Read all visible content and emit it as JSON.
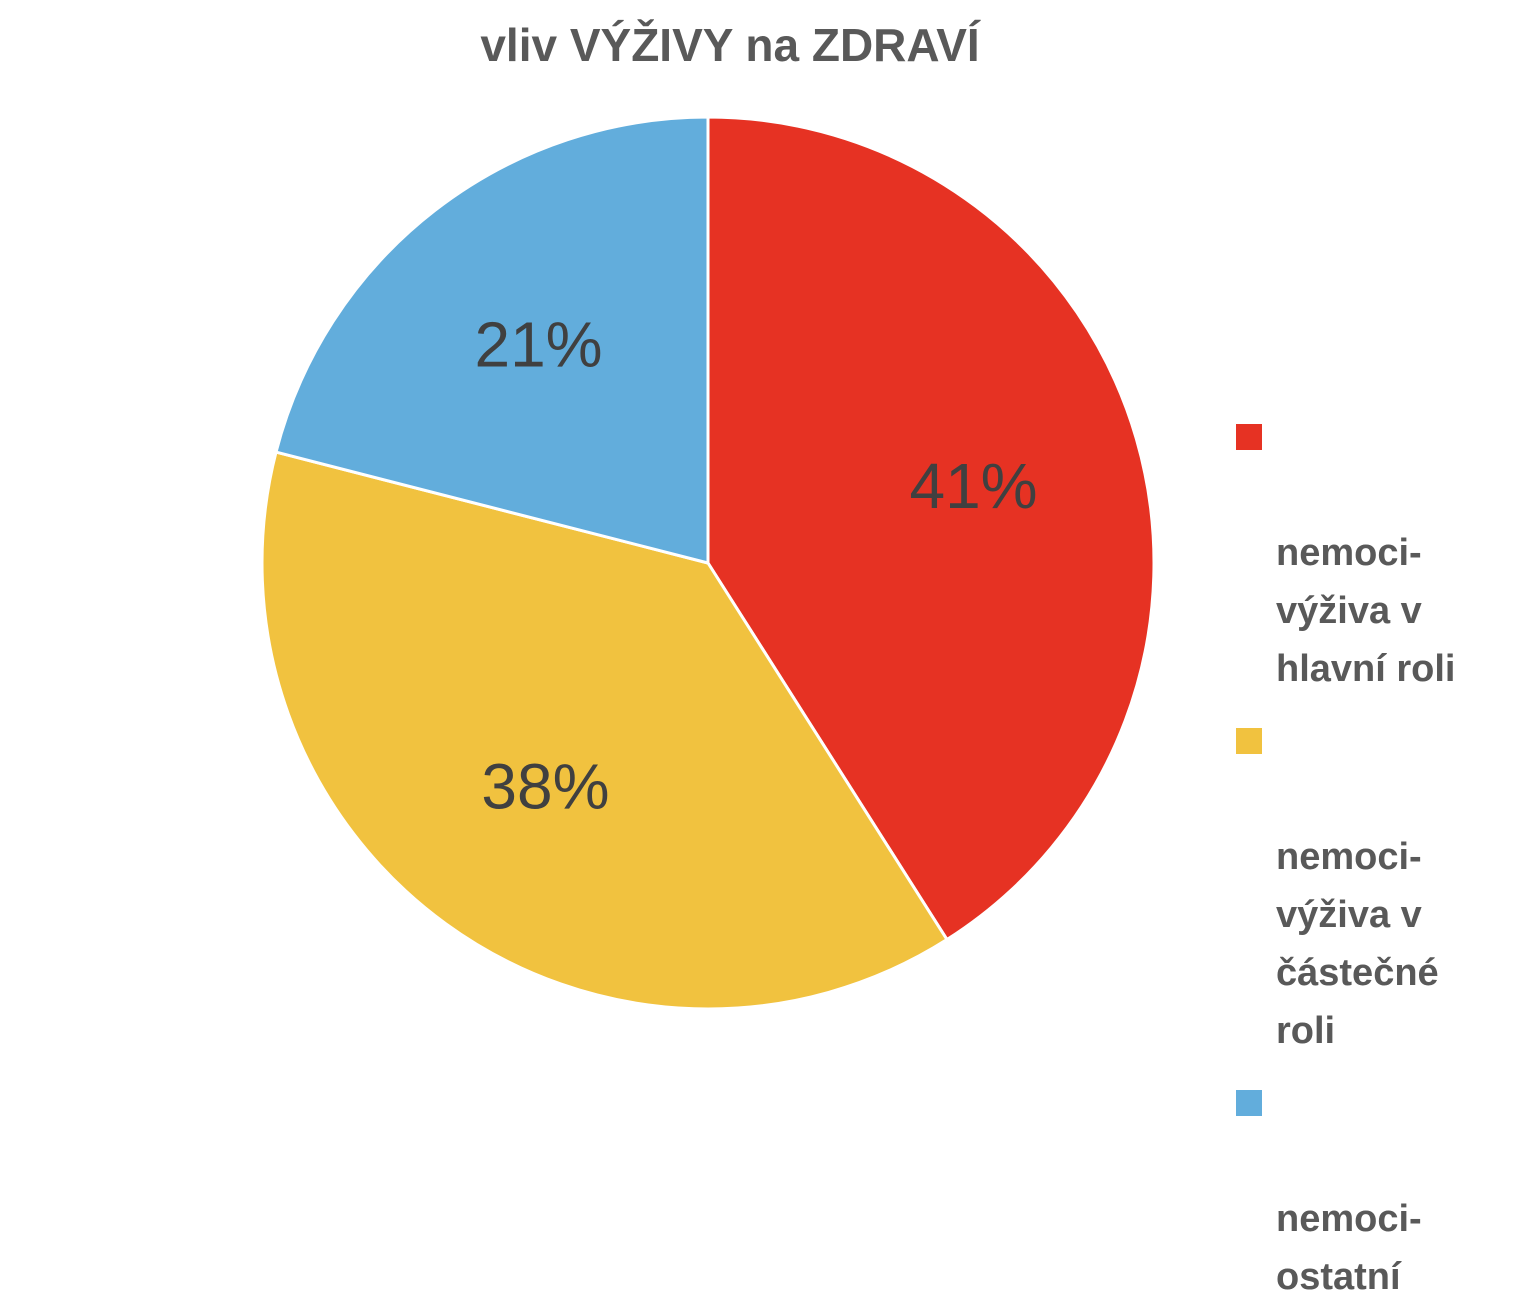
{
  "chart_data": {
    "type": "pie",
    "title": "vliv VÝŽIVY na ZDRAVÍ",
    "legend_position": "right",
    "slices": [
      {
        "label": "nemoci-\nvýživa v\nhlavní roli",
        "value": 41,
        "display": "41%",
        "color": "#E63223"
      },
      {
        "label": "nemoci-\nvýživa v\nčástečné\nroli",
        "value": 38,
        "display": "38%",
        "color": "#F1C23F"
      },
      {
        "label": "nemoci-\nostatní",
        "value": 21,
        "display": "21%",
        "color": "#62ADDC"
      }
    ]
  }
}
